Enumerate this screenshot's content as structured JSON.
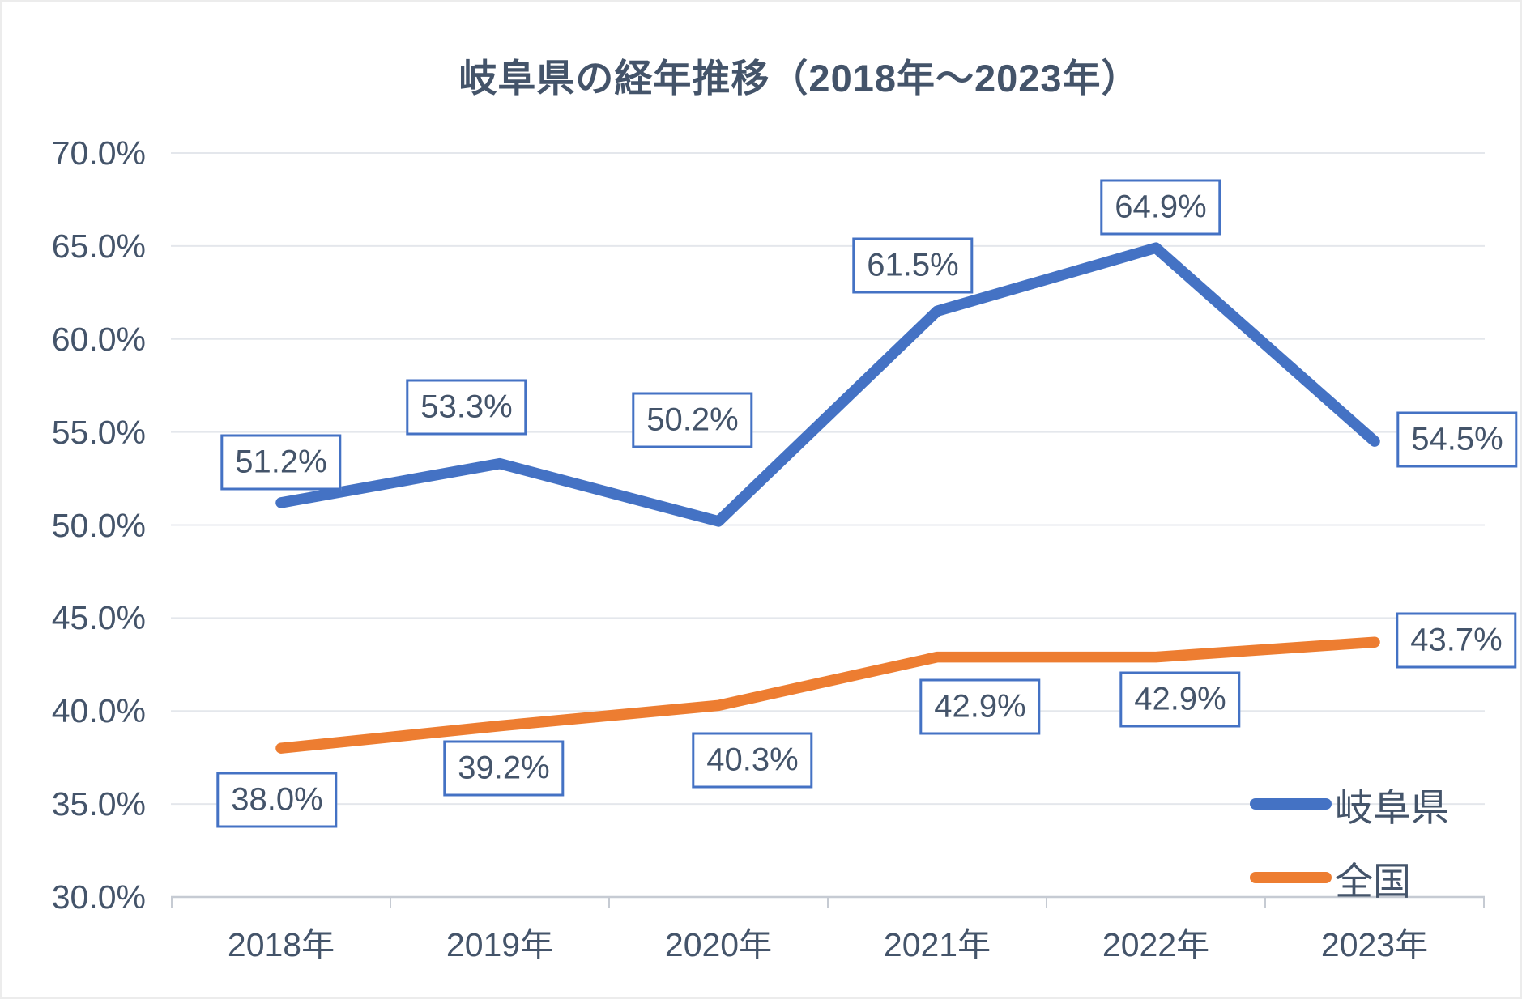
{
  "chart_data": {
    "type": "line",
    "title": "岐阜県の経年推移（2018年～2023年）",
    "categories": [
      "2018年",
      "2019年",
      "2020年",
      "2021年",
      "2022年",
      "2023年"
    ],
    "series": [
      {
        "name": "岐阜県",
        "color": "#4472C4",
        "values": [
          51.2,
          53.3,
          50.2,
          61.5,
          64.9,
          54.5
        ],
        "point_labels": [
          "51.2%",
          "53.3%",
          "50.2%",
          "61.5%",
          "64.9%",
          "54.5%"
        ]
      },
      {
        "name": "全国",
        "color": "#ED7D31",
        "values": [
          38.0,
          39.2,
          40.3,
          42.9,
          42.9,
          43.7
        ],
        "point_labels": [
          "38.0%",
          "39.2%",
          "40.3%",
          "42.9%",
          "42.9%",
          "43.7%"
        ]
      }
    ],
    "y_axis": {
      "min": 30,
      "max": 70,
      "step": 5,
      "tick_labels": [
        "70.0%",
        "65.0%",
        "60.0%",
        "55.0%",
        "50.0%",
        "45.0%",
        "40.0%",
        "35.0%",
        "30.0%"
      ]
    },
    "grid": true,
    "legend_position": "bottom-right",
    "colors": {
      "text": "#44546A",
      "gridline": "#E4E7EC",
      "axis_line": "#C6CBD3",
      "label_box_border": "#4472C4",
      "label_box_bg": "#FFFFFF",
      "background": "#FFFFFF"
    }
  }
}
